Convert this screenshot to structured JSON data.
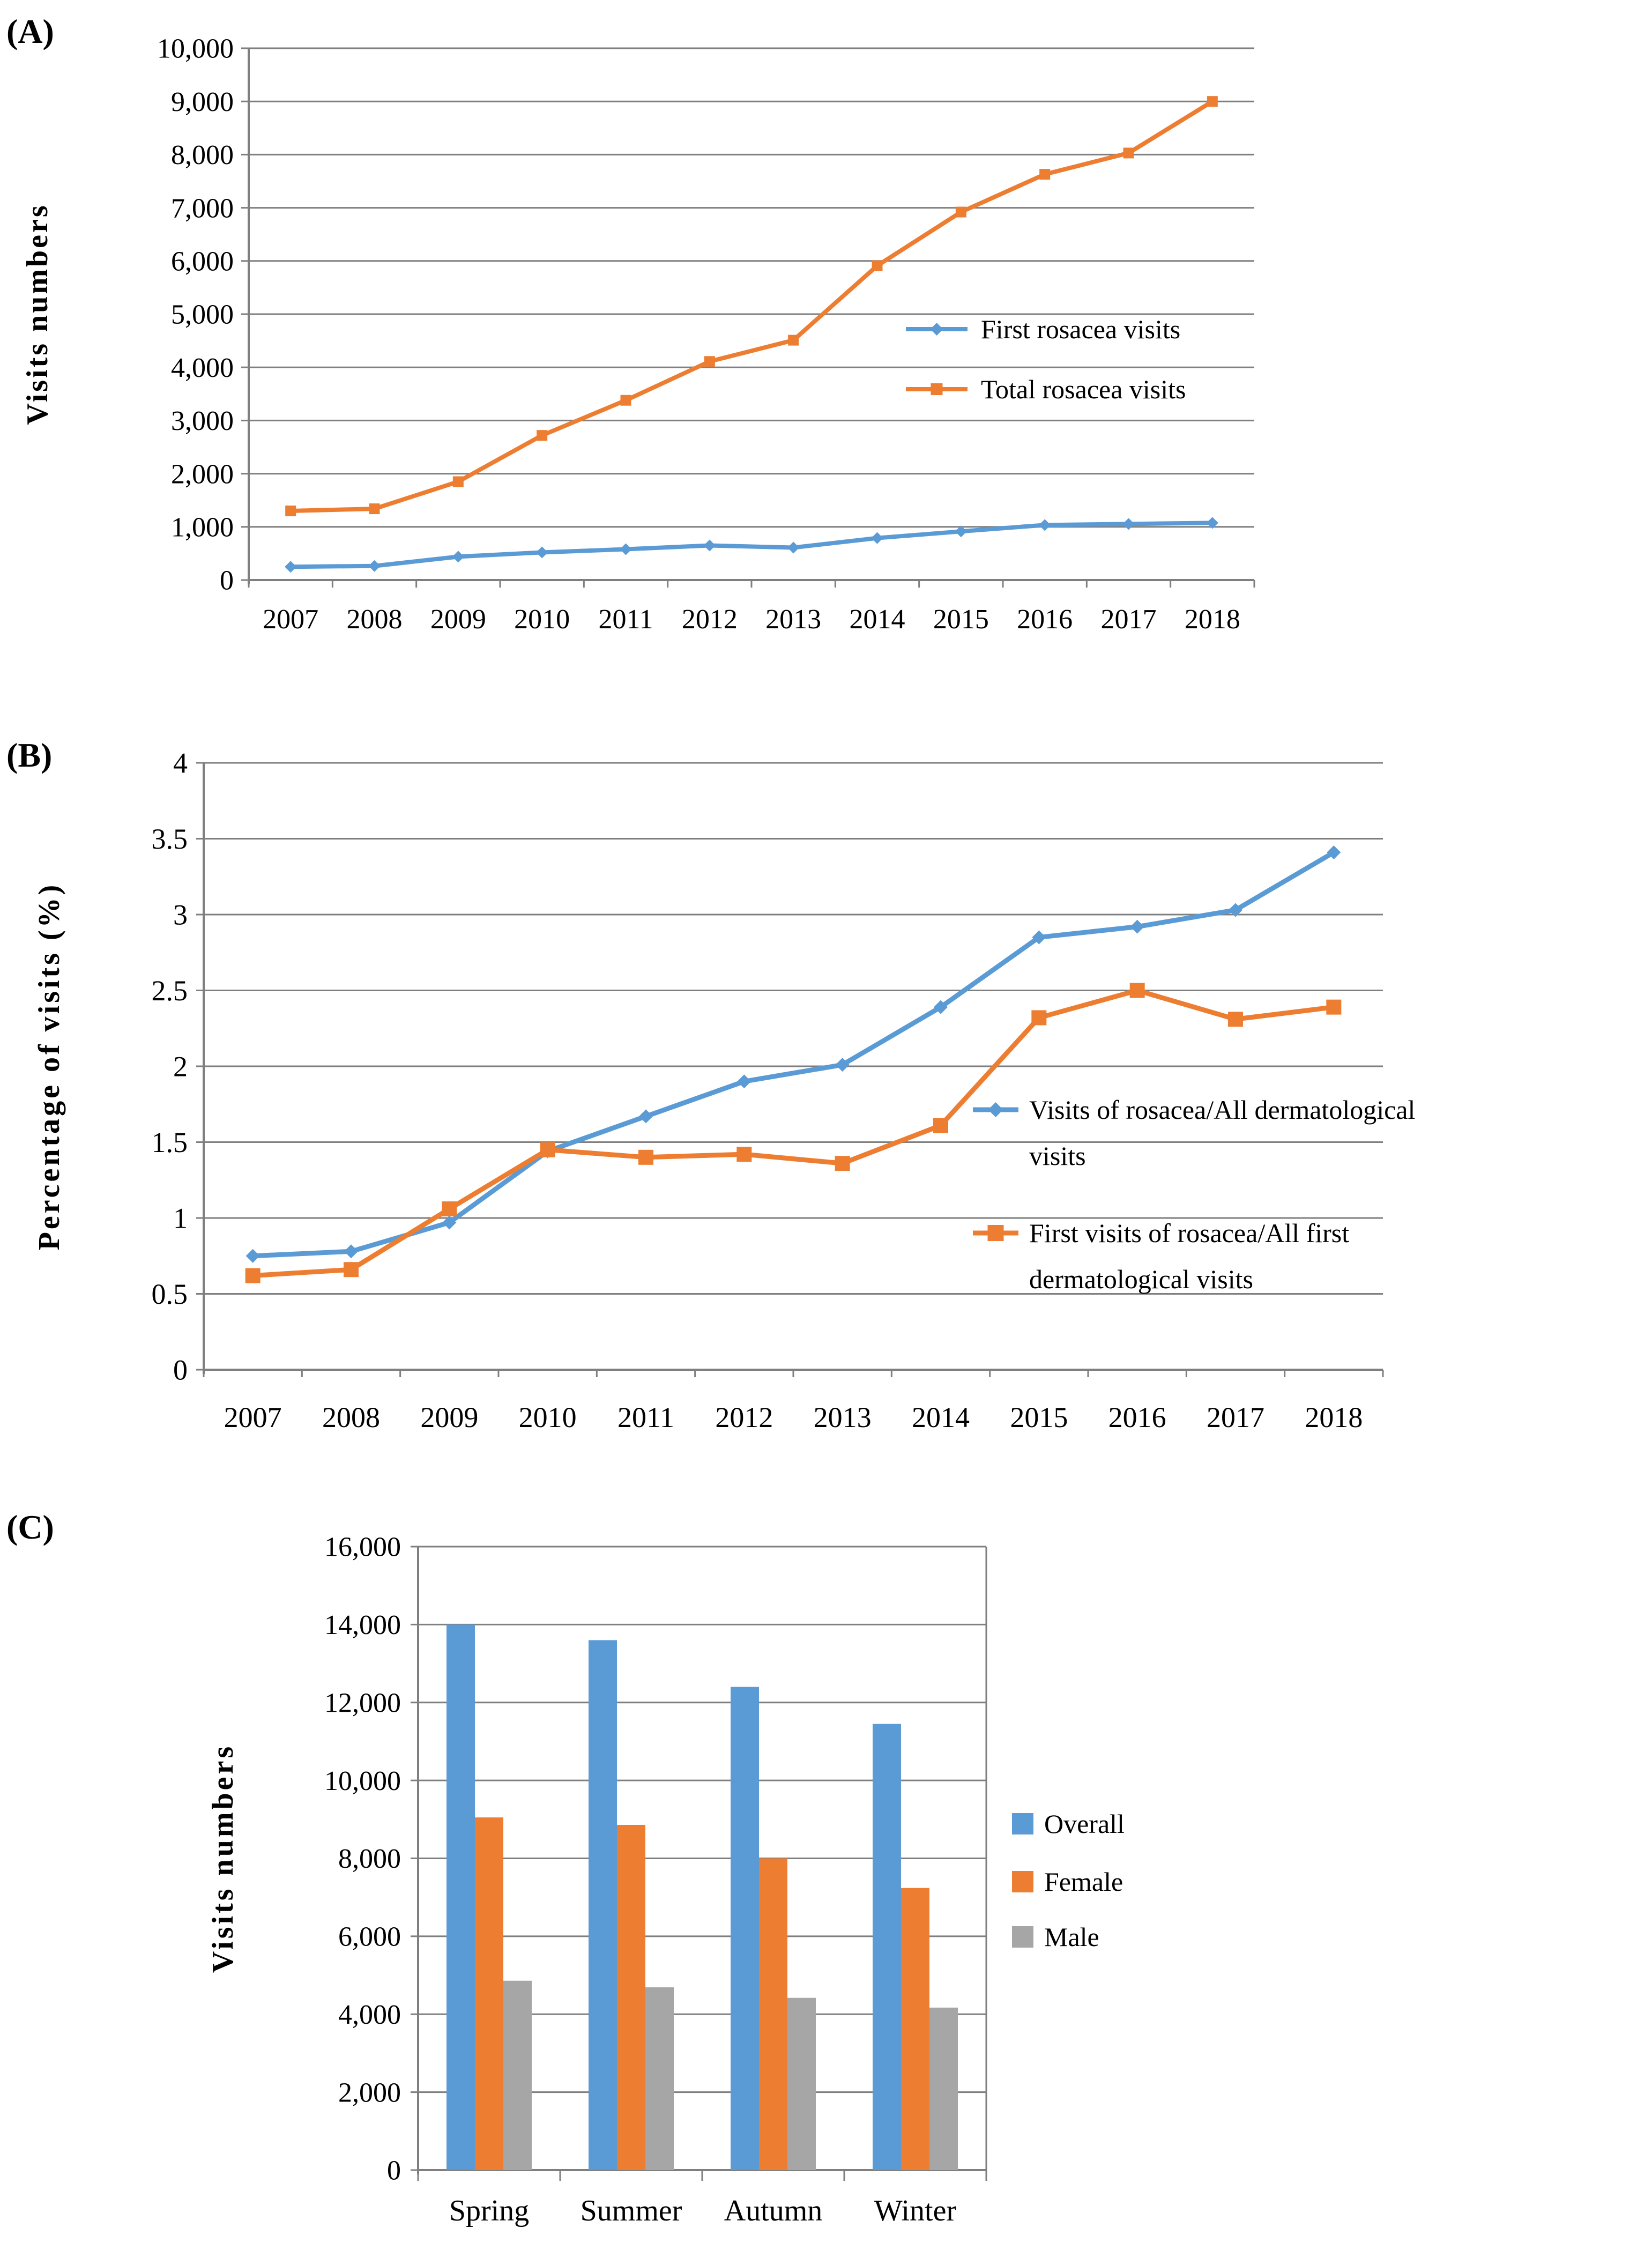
{
  "figure": {
    "panels": [
      {
        "label": "(A)"
      },
      {
        "label": "(B)"
      },
      {
        "label": "(C)"
      }
    ]
  },
  "colors": {
    "blue": "#5B9BD5",
    "orange": "#ED7D31",
    "gray": "#A6A6A6",
    "grid": "#7F7F7F",
    "axis": "#7F7F7F",
    "text": "#000000"
  },
  "chart_data": [
    {
      "id": "A",
      "type": "line",
      "panel_label": "(A)",
      "title": "",
      "xlabel": "",
      "ylabel": "Visits numbers",
      "categories": [
        "2007",
        "2008",
        "2009",
        "2010",
        "2011",
        "2012",
        "2013",
        "2014",
        "2015",
        "2016",
        "2017",
        "2018"
      ],
      "ylim": [
        0,
        10000
      ],
      "ytick_labels": [
        "0",
        "1,000",
        "2,000",
        "3,000",
        "4,000",
        "5,000",
        "6,000",
        "7,000",
        "8,000",
        "9,000",
        "10,000"
      ],
      "grid": true,
      "legend_position": "inside-right",
      "series": [
        {
          "name": "First rosacea visits",
          "color_key": "blue",
          "marker": "diamond",
          "values": [
            250,
            265,
            440,
            520,
            580,
            650,
            610,
            790,
            915,
            1035,
            1055,
            1075
          ]
        },
        {
          "name": "Total rosacea visits",
          "color_key": "orange",
          "marker": "square",
          "values": [
            1300,
            1340,
            1850,
            2720,
            3380,
            4110,
            4510,
            5910,
            6920,
            7630,
            8030,
            9000
          ]
        }
      ],
      "legend": [
        {
          "series": 0,
          "lines": [
            "First rosacea visits"
          ]
        },
        {
          "series": 1,
          "lines": [
            "Total rosacea visits"
          ]
        }
      ]
    },
    {
      "id": "B",
      "type": "line",
      "panel_label": "(B)",
      "title": "",
      "xlabel": "",
      "ylabel": "Percentage of visits (%)",
      "categories": [
        "2007",
        "2008",
        "2009",
        "2010",
        "2011",
        "2012",
        "2013",
        "2014",
        "2015",
        "2016",
        "2017",
        "2018"
      ],
      "ylim": [
        0,
        4
      ],
      "ytick_labels": [
        "0",
        "0.5",
        "1",
        "1.5",
        "2",
        "2.5",
        "3",
        "3.5",
        "4"
      ],
      "grid": true,
      "legend_position": "inside-right",
      "series": [
        {
          "name": "Visits of rosacea/All dermatological visits",
          "color_key": "blue",
          "marker": "diamond",
          "values": [
            0.75,
            0.78,
            0.97,
            1.44,
            1.67,
            1.9,
            2.01,
            2.39,
            2.85,
            2.92,
            3.03,
            3.41
          ]
        },
        {
          "name": "First visits of rosacea/All first dermatological visits",
          "color_key": "orange",
          "marker": "square",
          "values": [
            0.62,
            0.66,
            1.06,
            1.45,
            1.4,
            1.42,
            1.36,
            1.61,
            2.32,
            2.5,
            2.31,
            2.39
          ]
        }
      ],
      "legend": [
        {
          "series": 0,
          "lines": [
            "Visits of rosacea/All dermatological",
            "visits"
          ]
        },
        {
          "series": 1,
          "lines": [
            "First visits of rosacea/All first",
            "dermatological visits"
          ]
        }
      ]
    },
    {
      "id": "C",
      "type": "bar",
      "panel_label": "(C)",
      "title": "",
      "xlabel": "",
      "ylabel": "Visits numbers",
      "categories": [
        "Spring",
        "Summer",
        "Autumn",
        "Winter"
      ],
      "ylim": [
        0,
        16000
      ],
      "ytick_labels": [
        "0",
        "2,000",
        "4,000",
        "6,000",
        "8,000",
        "10,000",
        "12,000",
        "14,000",
        "16,000"
      ],
      "grid": true,
      "legend_position": "outside-right",
      "series": [
        {
          "name": "Overall",
          "color_key": "blue",
          "values": [
            14000,
            13600,
            12400,
            11450
          ]
        },
        {
          "name": "Female",
          "color_key": "orange",
          "values": [
            9050,
            8860,
            8000,
            7240
          ]
        },
        {
          "name": "Male",
          "color_key": "gray",
          "values": [
            4860,
            4690,
            4420,
            4170
          ]
        }
      ],
      "legend": [
        {
          "series": 0,
          "lines": [
            "Overall"
          ]
        },
        {
          "series": 1,
          "lines": [
            "Female"
          ]
        },
        {
          "series": 2,
          "lines": [
            "Male"
          ]
        }
      ]
    }
  ]
}
